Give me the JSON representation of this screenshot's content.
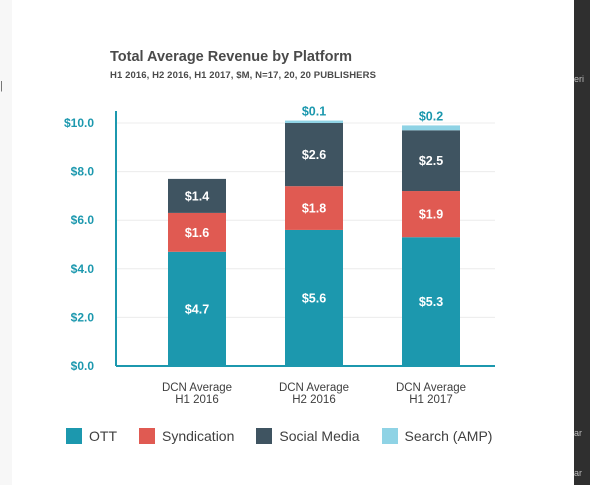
{
  "page": {
    "right_edge_fragments": [
      "eri",
      "ar",
      "ar"
    ]
  },
  "chart_data": {
    "type": "bar",
    "stacked": true,
    "title": "Total Average Revenue by Platform",
    "subtitle": "H1 2016, H2 2016, H1 2017, $M, N=17, 20, 20 PUBLISHERS",
    "categories": [
      [
        "DCN Average",
        "H1 2016"
      ],
      [
        "DCN Average",
        "H2 2016"
      ],
      [
        "DCN Average",
        "H1 2017"
      ]
    ],
    "series": [
      {
        "name": "OTT",
        "color": "#1c98ae",
        "values": [
          4.7,
          5.6,
          5.3
        ],
        "labels": [
          "$4.7",
          "$5.6",
          "$5.3"
        ]
      },
      {
        "name": "Syndication",
        "color": "#e05a52",
        "values": [
          1.6,
          1.8,
          1.9
        ],
        "labels": [
          "$1.6",
          "$1.8",
          "$1.9"
        ]
      },
      {
        "name": "Social Media",
        "color": "#3f5461",
        "values": [
          1.4,
          2.6,
          2.5
        ],
        "labels": [
          "$1.4",
          "$2.6",
          "$2.5"
        ]
      },
      {
        "name": "Search (AMP)",
        "color": "#8fd3e5",
        "values": [
          0,
          0.1,
          0.2
        ],
        "labels": [
          "",
          "$0.1",
          "$0.2"
        ]
      }
    ],
    "ylim": [
      0,
      10
    ],
    "yticks": [
      0,
      2,
      4,
      6,
      8,
      10
    ],
    "ytick_labels": [
      "$0.0",
      "$2.0",
      "$4.0",
      "$6.0",
      "$8.0",
      "$10.0"
    ],
    "xlabel": "",
    "ylabel": "",
    "grid": true,
    "legend_position": "bottom",
    "axis_color": "#1c98ae"
  }
}
